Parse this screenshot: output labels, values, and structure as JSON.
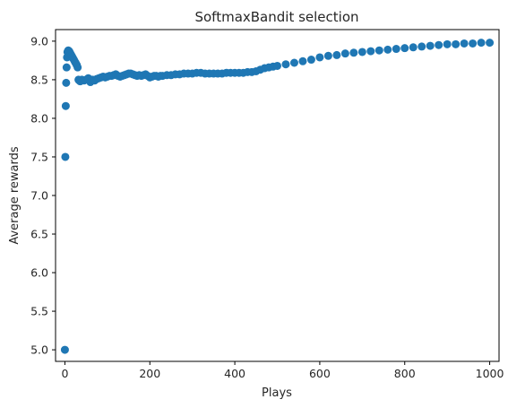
{
  "chart_data": {
    "type": "scatter",
    "title": "SoftmaxBandit selection",
    "xlabel": "Plays",
    "ylabel": "Average rewards",
    "xlim": [
      -22,
      1022
    ],
    "ylim": [
      4.85,
      9.15
    ],
    "xticks": [
      0,
      200,
      400,
      600,
      800,
      1000
    ],
    "xtick_labels": [
      "0",
      "200",
      "400",
      "600",
      "800",
      "1000"
    ],
    "yticks": [
      5.0,
      5.5,
      6.0,
      6.5,
      7.0,
      7.5,
      8.0,
      8.5,
      9.0
    ],
    "ytick_labels": [
      "5.0",
      "5.5",
      "6.0",
      "6.5",
      "7.0",
      "7.5",
      "8.0",
      "8.5",
      "9.0"
    ],
    "grid": false,
    "legend": "none",
    "marker_color": "#1f77b4",
    "series": [
      {
        "x": [
          0,
          1,
          2,
          3,
          4,
          5,
          6,
          8,
          10,
          12,
          14,
          16,
          18,
          20,
          22,
          24,
          26,
          28,
          30,
          32,
          34,
          36,
          40,
          45,
          50,
          55,
          60,
          65,
          70,
          75,
          80,
          85,
          90,
          95,
          100,
          105,
          110,
          115,
          120,
          125,
          130,
          135,
          140,
          145,
          150,
          155,
          160,
          165,
          170,
          175,
          180,
          185,
          190,
          195,
          200,
          205,
          210,
          215,
          220,
          225,
          230,
          240,
          250,
          260,
          270,
          280,
          290,
          300,
          310,
          320,
          330,
          340,
          350,
          360,
          370,
          380,
          390,
          400,
          410,
          420,
          430,
          440,
          450,
          460,
          470,
          480,
          490,
          500,
          520,
          540,
          560,
          580,
          600,
          620,
          640,
          660,
          680,
          700,
          720,
          740,
          760,
          780,
          800,
          820,
          840,
          860,
          880,
          900,
          920,
          940,
          960,
          980,
          1000
        ],
        "y": [
          5.0,
          7.5,
          8.16,
          8.46,
          8.66,
          8.79,
          8.86,
          8.88,
          8.87,
          8.85,
          8.83,
          8.81,
          8.79,
          8.77,
          8.75,
          8.73,
          8.71,
          8.69,
          8.66,
          8.5,
          8.49,
          8.48,
          8.5,
          8.49,
          8.5,
          8.52,
          8.47,
          8.5,
          8.49,
          8.51,
          8.52,
          8.53,
          8.54,
          8.53,
          8.54,
          8.55,
          8.55,
          8.56,
          8.57,
          8.55,
          8.54,
          8.55,
          8.56,
          8.57,
          8.58,
          8.58,
          8.57,
          8.56,
          8.55,
          8.56,
          8.55,
          8.56,
          8.57,
          8.55,
          8.53,
          8.54,
          8.55,
          8.55,
          8.54,
          8.55,
          8.55,
          8.56,
          8.56,
          8.57,
          8.57,
          8.58,
          8.58,
          8.58,
          8.59,
          8.59,
          8.58,
          8.58,
          8.58,
          8.58,
          8.58,
          8.59,
          8.59,
          8.59,
          8.59,
          8.59,
          8.6,
          8.6,
          8.61,
          8.63,
          8.65,
          8.66,
          8.67,
          8.68,
          8.7,
          8.72,
          8.74,
          8.76,
          8.79,
          8.81,
          8.82,
          8.84,
          8.85,
          8.86,
          8.87,
          8.88,
          8.89,
          8.9,
          8.91,
          8.92,
          8.93,
          8.94,
          8.95,
          8.96,
          8.96,
          8.97,
          8.97,
          8.98,
          8.98
        ]
      }
    ]
  }
}
